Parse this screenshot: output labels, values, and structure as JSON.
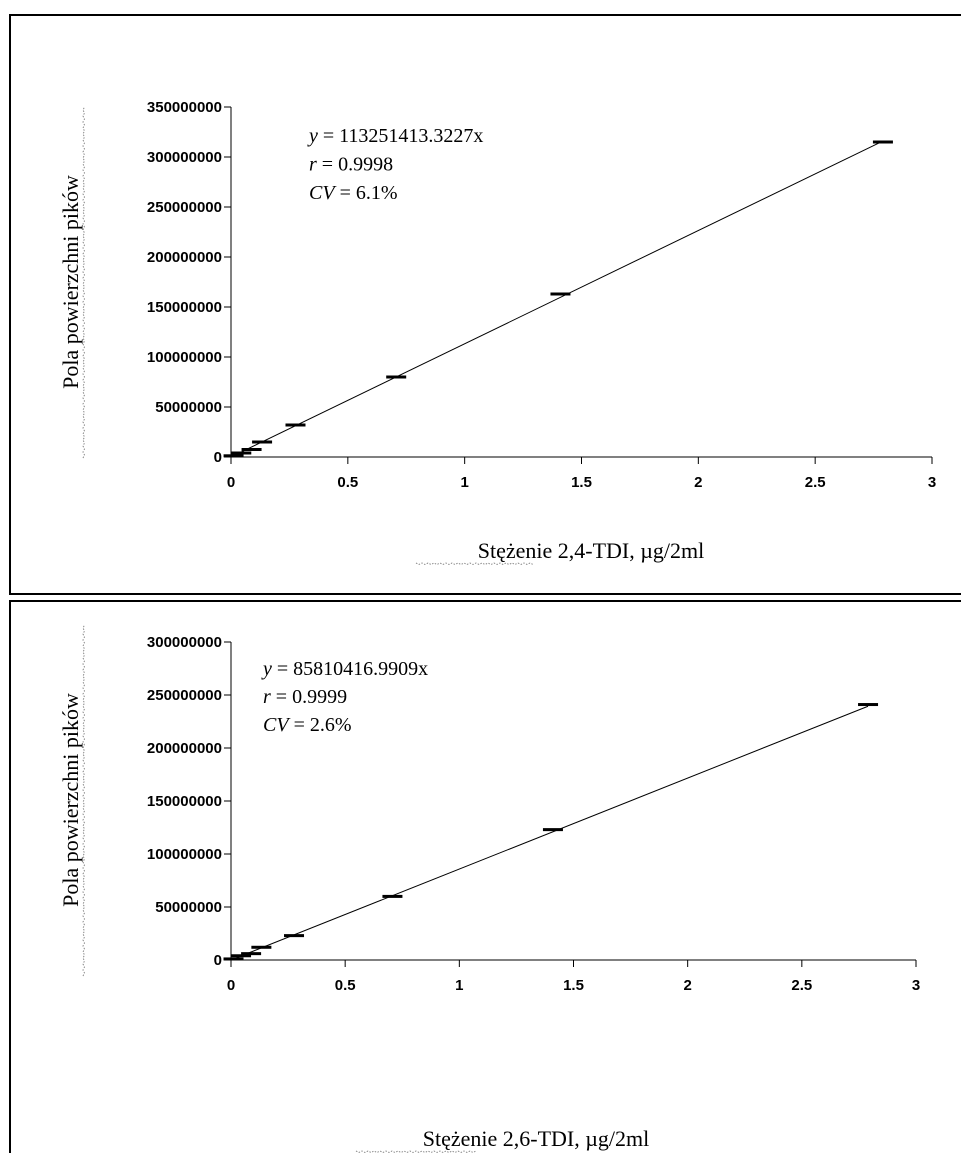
{
  "chart_data": [
    {
      "type": "scatter",
      "xlabel": "Stężenie 2,4-TDI, µg/2ml",
      "ylabel": "Pola powierzchni pików",
      "xlim": [
        0,
        3
      ],
      "ylim": [
        0,
        350000000
      ],
      "x_ticks": [
        "0",
        "0.5",
        "1",
        "1.5",
        "2",
        "2.5",
        "3"
      ],
      "y_ticks": [
        "0",
        "50000000",
        "100000000",
        "150000000",
        "200000000",
        "250000000",
        "300000000",
        "350000000"
      ],
      "grid": false,
      "annotations": [
        {
          "var": "y",
          "rest": " = 113251413.3227x"
        },
        {
          "var": "r",
          "rest": " = 0.9998"
        },
        {
          "var": "CV",
          "rest": " = 6.1%"
        }
      ],
      "points": {
        "x": [
          0.011,
          0.044,
          0.088,
          0.133,
          0.276,
          0.707,
          1.41,
          2.79
        ],
        "y": [
          1200000,
          4000000,
          7500000,
          15000000,
          32000000,
          80000000,
          163000000,
          315000000
        ]
      },
      "fit_line": {
        "slope": 113251413.3227,
        "x_range": [
          0,
          2.79
        ]
      }
    },
    {
      "type": "scatter",
      "xlabel": "Stężenie 2,6-TDI, µg/2ml",
      "ylabel": "Pola powierzchni pików",
      "xlim": [
        0,
        3
      ],
      "ylim": [
        0,
        300000000
      ],
      "x_ticks": [
        "0",
        "0.5",
        "1",
        "1.5",
        "2",
        "2.5",
        "3"
      ],
      "y_ticks": [
        "0",
        "50000000",
        "100000000",
        "150000000",
        "200000000",
        "250000000",
        "300000000"
      ],
      "grid": false,
      "annotations": [
        {
          "var": "y",
          "rest": " = 85810416.9909x"
        },
        {
          "var": "r",
          "rest": " = 0.9999"
        },
        {
          "var": "CV",
          "rest": " = 2.6%"
        }
      ],
      "points": {
        "x": [
          0.011,
          0.044,
          0.088,
          0.133,
          0.276,
          0.707,
          1.41,
          2.79
        ],
        "y": [
          1000000,
          4000000,
          6000000,
          12000000,
          23000000,
          60000000,
          123000000,
          241000000
        ]
      },
      "fit_line": {
        "slope": 85810416.9909,
        "x_range": [
          0,
          2.79
        ]
      }
    }
  ]
}
